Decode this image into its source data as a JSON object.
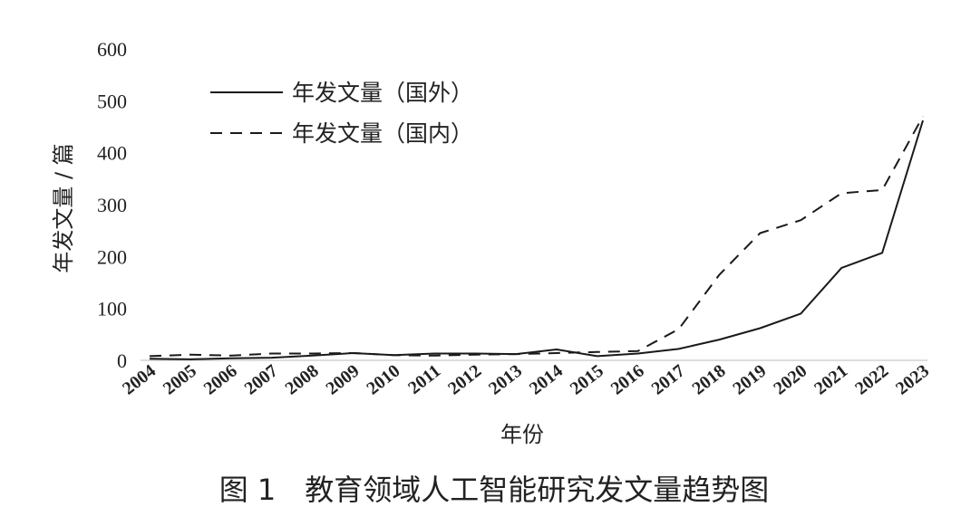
{
  "chart_data": {
    "type": "line",
    "title": "",
    "caption": "图 1　教育领域人工智能研究发文量趋势图",
    "xlabel": "年份",
    "ylabel": "年发文量 / 篇",
    "ylim": [
      0,
      600
    ],
    "yticks": [
      0,
      100,
      200,
      300,
      400,
      500,
      600
    ],
    "grid": false,
    "legend_position": "top-left",
    "x": [
      "2004",
      "2005",
      "2006",
      "2007",
      "2008",
      "2009",
      "2010",
      "2011",
      "2012",
      "2013",
      "2014",
      "2015",
      "2016",
      "2017",
      "2018",
      "2019",
      "2020",
      "2021",
      "2022",
      "2023"
    ],
    "series": [
      {
        "name": "年发文量（国外）",
        "style": "solid",
        "values": [
          3,
          2,
          4,
          5,
          9,
          14,
          10,
          13,
          13,
          12,
          21,
          8,
          13,
          22,
          40,
          62,
          90,
          178,
          207,
          462
        ]
      },
      {
        "name": "年发文量（国内）",
        "style": "dashed",
        "values": [
          8,
          11,
          9,
          13,
          13,
          14,
          10,
          9,
          11,
          12,
          14,
          16,
          18,
          60,
          165,
          245,
          270,
          322,
          328,
          470
        ]
      }
    ],
    "colors": {
      "line": "#1a1a1a",
      "text": "#222222"
    }
  }
}
